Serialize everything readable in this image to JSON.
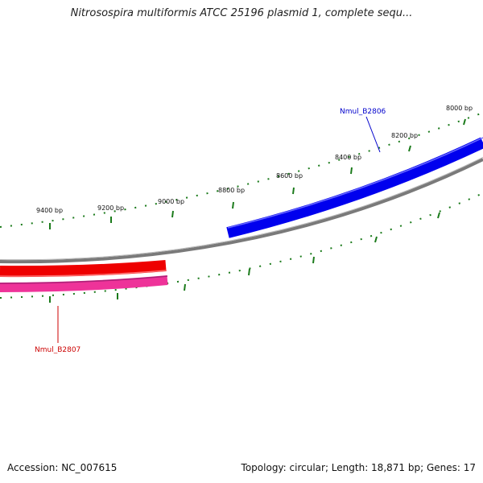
{
  "title": "Nitrosospira multiformis ATCC 25196 plasmid 1, complete sequ...",
  "footer": {
    "accession": "Accession: NC_007615",
    "summary": "Topology: circular; Length: 18,871 bp; Genes: 17"
  },
  "scale_labels": [
    "8000 bp",
    "8200 bp",
    "8400 bp",
    "8600 bp",
    "8800 bp",
    "9000 bp",
    "9200 bp",
    "9400 bp"
  ],
  "genes": [
    {
      "name": "Nmul_B2806",
      "color": "#0000cc",
      "strand": "forward"
    },
    {
      "name": "Nmul_B2807",
      "color": "#cc0000",
      "strand": "reverse"
    }
  ],
  "colors": {
    "backbone": "#7a7a7a",
    "ticks": "#1a7a1a",
    "forward_gene": "#0000ee",
    "reverse_gene_1": "#ee0000",
    "reverse_gene_2": "#ee3399"
  }
}
